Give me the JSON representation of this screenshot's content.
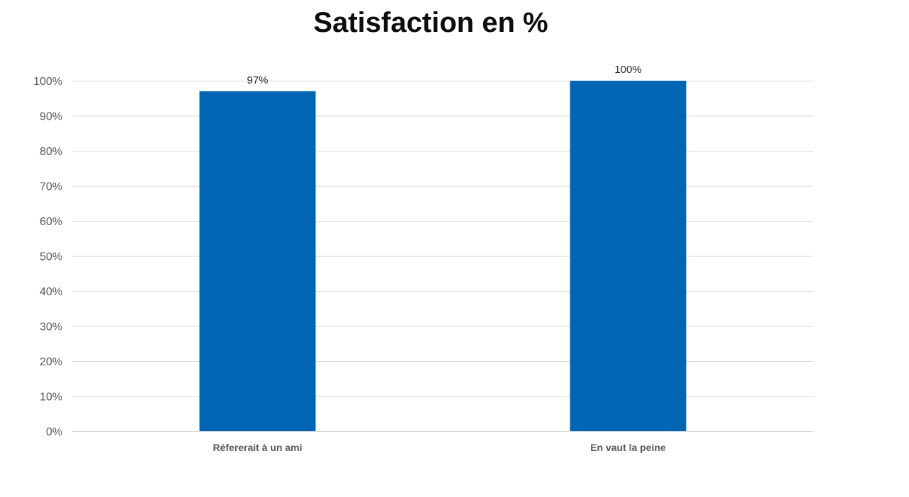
{
  "chart_data": {
    "type": "bar",
    "title": "Satisfaction en %",
    "categories": [
      "Réfererait à un ami",
      "En vaut la peine"
    ],
    "values": [
      97,
      100
    ],
    "value_labels": [
      "97%",
      "100%"
    ],
    "ylim": [
      0,
      100
    ],
    "yticks": [
      "0%",
      "10%",
      "20%",
      "30%",
      "40%",
      "50%",
      "60%",
      "70%",
      "80%",
      "90%",
      "100%"
    ],
    "xlabel": "",
    "ylabel": "",
    "grid": true,
    "legend": "none",
    "bar_color": "#0066B3",
    "grid_color": "#D9D9D9"
  }
}
